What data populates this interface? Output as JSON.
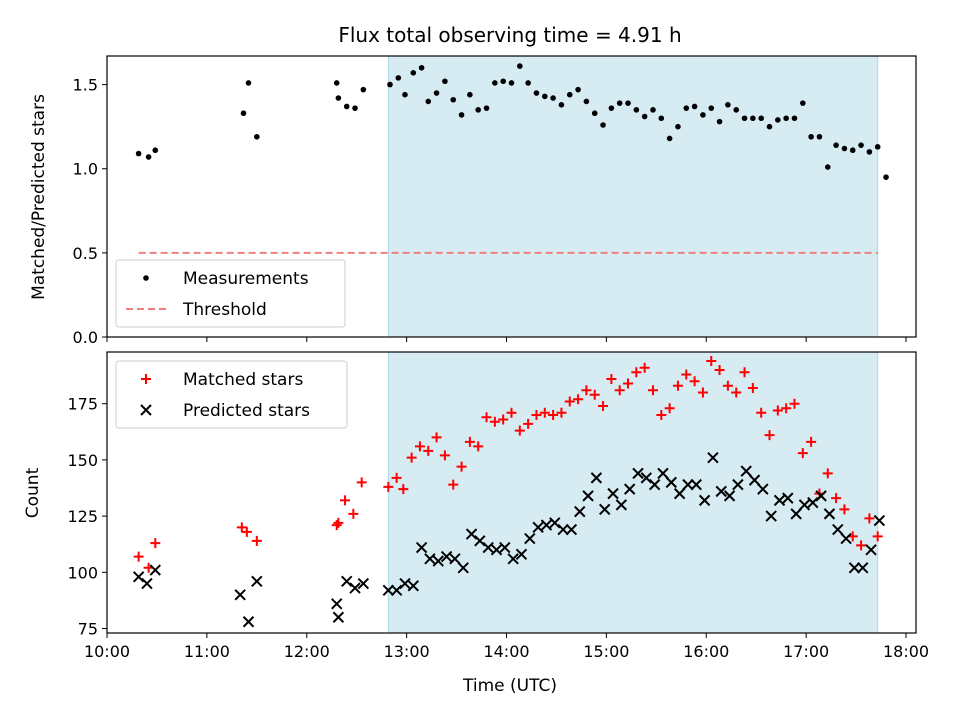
{
  "figure": {
    "title": "Flux total observing time = 4.91 h",
    "xlabel": "Time (UTC)"
  },
  "colors": {
    "shade": "#add8e6",
    "measurement": "#000000",
    "threshold": "#f08080",
    "matched": "#ff0000",
    "predicted": "#000000"
  },
  "chart_data": [
    {
      "type": "scatter",
      "ylabel": "Matched/Predicted stars",
      "xlim": [
        "10:00",
        "18:06"
      ],
      "ylim": [
        0,
        1.67
      ],
      "yticks": [
        0.0,
        0.5,
        1.0,
        1.5
      ],
      "ytick_labels": [
        "0.0",
        "0.5",
        "1.0",
        "1.5"
      ],
      "shaded_span": [
        "12:49",
        "17:43"
      ],
      "legend": {
        "placement": "lower-left",
        "entries": [
          "Measurements",
          "Threshold"
        ]
      },
      "threshold": {
        "name": "Threshold",
        "y": 0.5,
        "x": [
          "10:19",
          "17:43"
        ]
      },
      "series": [
        {
          "name": "Measurements",
          "marker": "dot",
          "points": [
            [
              "10:19",
              1.09
            ],
            [
              "10:25",
              1.07
            ],
            [
              "10:29",
              1.11
            ],
            [
              "11:22",
              1.33
            ],
            [
              "11:25",
              1.51
            ],
            [
              "11:30",
              1.19
            ],
            [
              "12:18",
              1.51
            ],
            [
              "12:19",
              1.42
            ],
            [
              "12:24",
              1.37
            ],
            [
              "12:29",
              1.36
            ],
            [
              "12:34",
              1.47
            ],
            [
              "12:50",
              1.5
            ],
            [
              "12:55",
              1.54
            ],
            [
              "12:59",
              1.44
            ],
            [
              "13:04",
              1.57
            ],
            [
              "13:09",
              1.6
            ],
            [
              "13:13",
              1.4
            ],
            [
              "13:18",
              1.45
            ],
            [
              "13:23",
              1.52
            ],
            [
              "13:28",
              1.41
            ],
            [
              "13:33",
              1.32
            ],
            [
              "13:38",
              1.44
            ],
            [
              "13:43",
              1.35
            ],
            [
              "13:48",
              1.36
            ],
            [
              "13:53",
              1.51
            ],
            [
              "13:58",
              1.52
            ],
            [
              "14:03",
              1.51
            ],
            [
              "14:08",
              1.61
            ],
            [
              "14:13",
              1.51
            ],
            [
              "14:18",
              1.45
            ],
            [
              "14:23",
              1.43
            ],
            [
              "14:28",
              1.42
            ],
            [
              "14:33",
              1.38
            ],
            [
              "14:38",
              1.44
            ],
            [
              "14:43",
              1.47
            ],
            [
              "14:48",
              1.4
            ],
            [
              "14:53",
              1.33
            ],
            [
              "14:58",
              1.26
            ],
            [
              "15:03",
              1.36
            ],
            [
              "15:08",
              1.39
            ],
            [
              "15:13",
              1.39
            ],
            [
              "15:18",
              1.35
            ],
            [
              "15:23",
              1.31
            ],
            [
              "15:28",
              1.35
            ],
            [
              "15:33",
              1.3
            ],
            [
              "15:38",
              1.18
            ],
            [
              "15:43",
              1.25
            ],
            [
              "15:48",
              1.36
            ],
            [
              "15:53",
              1.37
            ],
            [
              "15:58",
              1.32
            ],
            [
              "16:03",
              1.36
            ],
            [
              "16:08",
              1.28
            ],
            [
              "16:13",
              1.38
            ],
            [
              "16:18",
              1.35
            ],
            [
              "16:23",
              1.3
            ],
            [
              "16:28",
              1.3
            ],
            [
              "16:33",
              1.3
            ],
            [
              "16:38",
              1.25
            ],
            [
              "16:43",
              1.29
            ],
            [
              "16:48",
              1.3
            ],
            [
              "16:53",
              1.3
            ],
            [
              "16:58",
              1.39
            ],
            [
              "17:03",
              1.19
            ],
            [
              "17:08",
              1.19
            ],
            [
              "17:13",
              1.01
            ],
            [
              "17:18",
              1.14
            ],
            [
              "17:23",
              1.12
            ],
            [
              "17:28",
              1.11
            ],
            [
              "17:33",
              1.14
            ],
            [
              "17:38",
              1.1
            ],
            [
              "17:43",
              1.13
            ],
            [
              "17:48",
              0.95
            ]
          ]
        }
      ]
    },
    {
      "type": "scatter",
      "ylabel": "Count",
      "xlim": [
        "10:00",
        "18:06"
      ],
      "ylim": [
        73,
        198
      ],
      "yticks": [
        75,
        100,
        125,
        150,
        175
      ],
      "ytick_labels": [
        "75",
        "100",
        "125",
        "150",
        "175"
      ],
      "xticks": [
        "10:00",
        "11:00",
        "12:00",
        "13:00",
        "14:00",
        "15:00",
        "16:00",
        "17:00",
        "18:00"
      ],
      "shaded_span": [
        "12:49",
        "17:43"
      ],
      "legend": {
        "placement": "upper-left",
        "entries": [
          "Matched stars",
          "Predicted stars"
        ]
      },
      "series": [
        {
          "name": "Matched stars",
          "marker": "plus",
          "points": [
            [
              "10:19",
              107
            ],
            [
              "10:25",
              102
            ],
            [
              "10:29",
              113
            ],
            [
              "11:21",
              120
            ],
            [
              "11:24",
              118
            ],
            [
              "11:30",
              114
            ],
            [
              "12:18",
              121
            ],
            [
              "12:19",
              122
            ],
            [
              "12:23",
              132
            ],
            [
              "12:28",
              126
            ],
            [
              "12:33",
              140
            ],
            [
              "12:49",
              138
            ],
            [
              "12:54",
              142
            ],
            [
              "12:58",
              137
            ],
            [
              "13:03",
              151
            ],
            [
              "13:08",
              156
            ],
            [
              "13:13",
              154
            ],
            [
              "13:18",
              160
            ],
            [
              "13:23",
              152
            ],
            [
              "13:28",
              139
            ],
            [
              "13:33",
              147
            ],
            [
              "13:38",
              158
            ],
            [
              "13:43",
              156
            ],
            [
              "13:48",
              169
            ],
            [
              "13:53",
              167
            ],
            [
              "13:58",
              168
            ],
            [
              "14:03",
              171
            ],
            [
              "14:08",
              163
            ],
            [
              "14:13",
              166
            ],
            [
              "14:18",
              170
            ],
            [
              "14:23",
              171
            ],
            [
              "14:28",
              170
            ],
            [
              "14:33",
              171
            ],
            [
              "14:38",
              176
            ],
            [
              "14:43",
              177
            ],
            [
              "14:48",
              181
            ],
            [
              "14:53",
              179
            ],
            [
              "14:58",
              174
            ],
            [
              "15:03",
              186
            ],
            [
              "15:08",
              181
            ],
            [
              "15:13",
              184
            ],
            [
              "15:18",
              189
            ],
            [
              "15:23",
              191
            ],
            [
              "15:28",
              181
            ],
            [
              "15:33",
              170
            ],
            [
              "15:38",
              173
            ],
            [
              "15:43",
              183
            ],
            [
              "15:48",
              188
            ],
            [
              "15:53",
              185
            ],
            [
              "15:58",
              180
            ],
            [
              "16:03",
              194
            ],
            [
              "16:08",
              190
            ],
            [
              "16:13",
              183
            ],
            [
              "16:18",
              180
            ],
            [
              "16:23",
              189
            ],
            [
              "16:28",
              182
            ],
            [
              "16:33",
              171
            ],
            [
              "16:38",
              161
            ],
            [
              "16:43",
              172
            ],
            [
              "16:48",
              173
            ],
            [
              "16:53",
              175
            ],
            [
              "16:58",
              153
            ],
            [
              "17:03",
              158
            ],
            [
              "17:08",
              135
            ],
            [
              "17:13",
              144
            ],
            [
              "17:18",
              133
            ],
            [
              "17:23",
              128
            ],
            [
              "17:28",
              116
            ],
            [
              "17:33",
              112
            ],
            [
              "17:38",
              124
            ],
            [
              "17:43",
              116
            ]
          ]
        },
        {
          "name": "Predicted stars",
          "marker": "x",
          "points": [
            [
              "10:19",
              98
            ],
            [
              "10:24",
              95
            ],
            [
              "10:29",
              101
            ],
            [
              "11:20",
              90
            ],
            [
              "11:25",
              78
            ],
            [
              "11:30",
              96
            ],
            [
              "12:18",
              86
            ],
            [
              "12:19",
              80
            ],
            [
              "12:24",
              96
            ],
            [
              "12:29",
              93
            ],
            [
              "12:34",
              95
            ],
            [
              "12:49",
              92
            ],
            [
              "12:54",
              92
            ],
            [
              "12:59",
              95
            ],
            [
              "13:04",
              94
            ],
            [
              "13:09",
              111
            ],
            [
              "13:14",
              106
            ],
            [
              "13:19",
              105
            ],
            [
              "13:24",
              107
            ],
            [
              "13:29",
              106
            ],
            [
              "13:34",
              102
            ],
            [
              "13:39",
              117
            ],
            [
              "13:44",
              114
            ],
            [
              "13:49",
              111
            ],
            [
              "13:54",
              110
            ],
            [
              "13:59",
              111
            ],
            [
              "14:04",
              106
            ],
            [
              "14:09",
              108
            ],
            [
              "14:14",
              115
            ],
            [
              "14:19",
              120
            ],
            [
              "14:24",
              121
            ],
            [
              "14:29",
              122
            ],
            [
              "14:34",
              119
            ],
            [
              "14:39",
              119
            ],
            [
              "14:44",
              127
            ],
            [
              "14:49",
              134
            ],
            [
              "14:54",
              142
            ],
            [
              "14:59",
              128
            ],
            [
              "15:04",
              135
            ],
            [
              "15:09",
              130
            ],
            [
              "15:14",
              137
            ],
            [
              "15:19",
              144
            ],
            [
              "15:24",
              142
            ],
            [
              "15:29",
              139
            ],
            [
              "15:34",
              144
            ],
            [
              "15:39",
              140
            ],
            [
              "15:44",
              135
            ],
            [
              "15:49",
              139
            ],
            [
              "15:54",
              139
            ],
            [
              "15:59",
              132
            ],
            [
              "16:04",
              151
            ],
            [
              "16:09",
              136
            ],
            [
              "16:14",
              134
            ],
            [
              "16:19",
              139
            ],
            [
              "16:24",
              145
            ],
            [
              "16:29",
              141
            ],
            [
              "16:34",
              137
            ],
            [
              "16:39",
              125
            ],
            [
              "16:44",
              132
            ],
            [
              "16:49",
              133
            ],
            [
              "16:54",
              126
            ],
            [
              "16:59",
              130
            ],
            [
              "17:04",
              131
            ],
            [
              "17:09",
              134
            ],
            [
              "17:14",
              126
            ],
            [
              "17:19",
              119
            ],
            [
              "17:24",
              115
            ],
            [
              "17:29",
              102
            ],
            [
              "17:34",
              102
            ],
            [
              "17:39",
              110
            ],
            [
              "17:44",
              123
            ]
          ]
        }
      ]
    }
  ]
}
